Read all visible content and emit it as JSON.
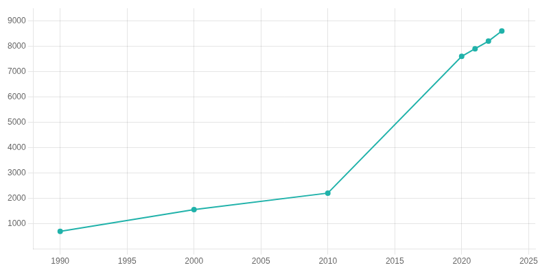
{
  "chart_data": {
    "type": "line",
    "x": [
      1990,
      2000,
      2010,
      2020,
      2021,
      2022,
      2023
    ],
    "values": [
      700,
      1556,
      2207,
      7600,
      7900,
      8200,
      8600
    ],
    "color": "#20b2aa",
    "marker": "circle",
    "xlim": [
      1988,
      2025.5
    ],
    "ylim": [
      0,
      9500
    ],
    "xticks": [
      1990,
      1995,
      2000,
      2005,
      2010,
      2015,
      2020,
      2025
    ],
    "yticks": [
      1000,
      2000,
      3000,
      4000,
      5000,
      6000,
      7000,
      8000,
      9000
    ],
    "grid": true
  }
}
